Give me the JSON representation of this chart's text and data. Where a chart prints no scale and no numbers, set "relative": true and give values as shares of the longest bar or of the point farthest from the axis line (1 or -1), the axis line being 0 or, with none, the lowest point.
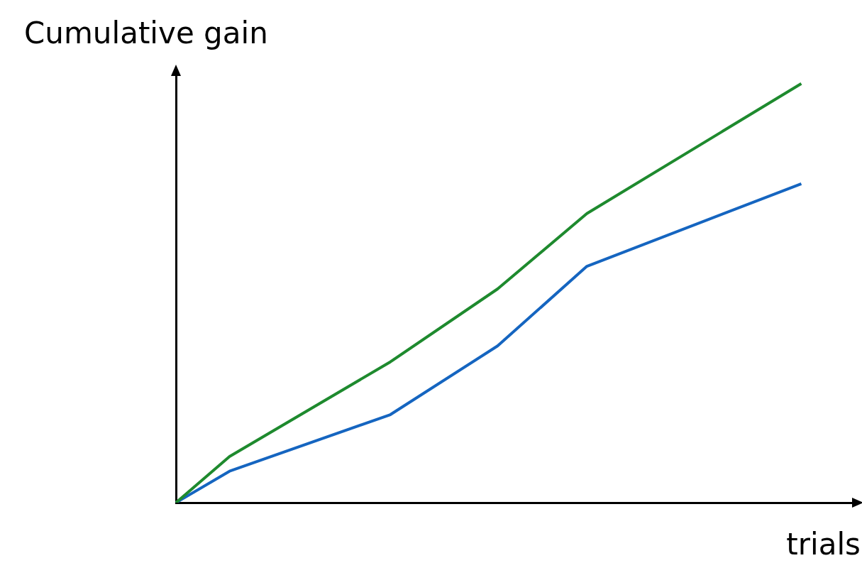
{
  "chart_data": {
    "type": "line",
    "relative": true,
    "ylabel": "Cumulative gain",
    "xlabel": "trials",
    "legend": false,
    "grid": false,
    "categories": [
      null,
      null,
      null,
      null,
      null,
      null,
      null,
      null,
      null,
      null,
      null,
      null,
      null,
      null,
      null,
      null,
      null,
      null,
      null,
      null,
      null,
      null,
      null,
      null,
      null,
      null,
      null,
      null,
      null,
      null,
      null,
      null,
      null,
      null,
      null,
      null,
      null,
      null,
      null
    ],
    "series": [
      {
        "color": "#1e8a2e",
        "values": [
          0,
          null,
          null,
          0.11,
          null,
          null,
          null,
          null,
          null,
          null,
          null,
          null,
          0.336,
          null,
          null,
          null,
          null,
          null,
          0.51,
          null,
          null,
          null,
          null,
          0.69,
          null,
          null,
          null,
          null,
          null,
          null,
          null,
          null,
          null,
          null,
          null,
          1,
          null,
          null,
          null
        ]
      },
      {
        "color": "#1565c0",
        "values": [
          0,
          null,
          null,
          0.075,
          null,
          null,
          null,
          null,
          null,
          null,
          null,
          null,
          0.21,
          null,
          null,
          null,
          null,
          null,
          0.374,
          null,
          null,
          null,
          null,
          0.564,
          null,
          null,
          null,
          null,
          null,
          null,
          null,
          null,
          null,
          null,
          null,
          0.761,
          null,
          null,
          null
        ]
      }
    ]
  }
}
